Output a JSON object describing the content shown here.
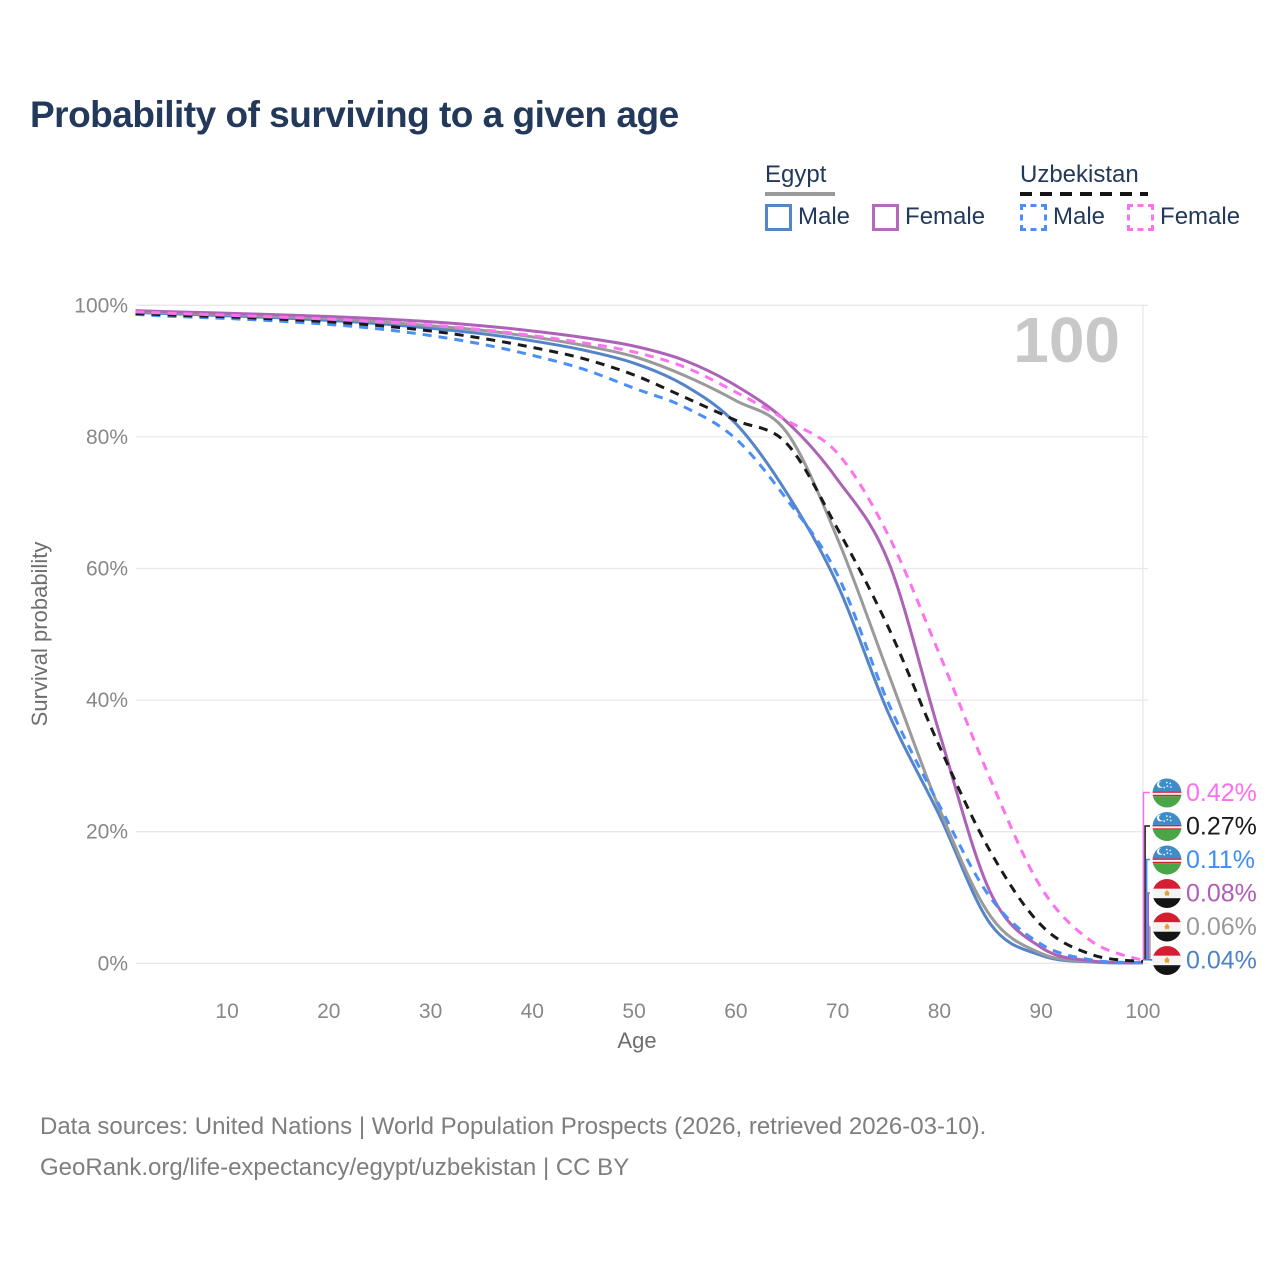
{
  "title": "Probability of surviving to a given age",
  "watermark": "100",
  "legend": {
    "groups": [
      {
        "title": "Egypt",
        "line_style": "solid",
        "underline_color": "#9a9a9a",
        "items": [
          {
            "label": "Male",
            "color": "#5585c9",
            "style": "solid"
          },
          {
            "label": "Female",
            "color": "#b36ab9",
            "style": "solid"
          }
        ]
      },
      {
        "title": "Uzbekistan",
        "line_style": "dashed",
        "underline_color": "#141414",
        "items": [
          {
            "label": "Male",
            "color": "#4b8ff5",
            "style": "dashed"
          },
          {
            "label": "Female",
            "color": "#fb73ee",
            "style": "dashed"
          }
        ]
      }
    ]
  },
  "chart_data": {
    "type": "line",
    "title": "Probability of surviving to a given age",
    "xlabel": "Age",
    "ylabel": "Survival probability",
    "xlim": [
      1,
      100
    ],
    "ylim": [
      0,
      100
    ],
    "grid": "horizontal",
    "legend_position": "top-right",
    "x_ticks": [
      {
        "v": 10,
        "label": "10"
      },
      {
        "v": 20,
        "label": "20"
      },
      {
        "v": 30,
        "label": "30"
      },
      {
        "v": 40,
        "label": "40"
      },
      {
        "v": 50,
        "label": "50"
      },
      {
        "v": 60,
        "label": "60"
      },
      {
        "v": 70,
        "label": "70"
      },
      {
        "v": 80,
        "label": "80"
      },
      {
        "v": 90,
        "label": "90"
      },
      {
        "v": 100,
        "label": "100"
      }
    ],
    "y_ticks": [
      {
        "v": 0,
        "label": "0%"
      },
      {
        "v": 20,
        "label": "20%"
      },
      {
        "v": 40,
        "label": "40%"
      },
      {
        "v": 60,
        "label": "60%"
      },
      {
        "v": 80,
        "label": "80%"
      },
      {
        "v": 100,
        "label": "100%"
      }
    ],
    "x": [
      1,
      5,
      10,
      15,
      20,
      25,
      30,
      35,
      40,
      45,
      50,
      55,
      60,
      65,
      70,
      75,
      80,
      85,
      90,
      95,
      100
    ],
    "series": [
      {
        "name": "Egypt Male",
        "country": "eg",
        "sex": "Male",
        "color": "#5585c9",
        "dash": false,
        "values": [
          98.9,
          98.7,
          98.4,
          98.1,
          97.7,
          97.2,
          96.5,
          95.7,
          94.6,
          93.2,
          91.2,
          87.8,
          82.0,
          71.5,
          57.5,
          38.0,
          22.5,
          6.0,
          1.2,
          0.2,
          0.04
        ]
      },
      {
        "name": "Egypt Both sexes",
        "country": "eg",
        "sex": "Both",
        "color": "#9a9a9a",
        "dash": false,
        "values": [
          99.05,
          98.85,
          98.6,
          98.3,
          98.0,
          97.5,
          96.9,
          96.2,
          95.2,
          93.9,
          92.2,
          89.3,
          85.5,
          80.7,
          64.5,
          44.0,
          23.5,
          7.2,
          1.5,
          0.25,
          0.06
        ]
      },
      {
        "name": "Egypt Female",
        "country": "eg",
        "sex": "Female",
        "color": "#ad62b8",
        "dash": false,
        "values": [
          99.2,
          99.0,
          98.8,
          98.55,
          98.3,
          97.95,
          97.5,
          96.9,
          96.1,
          95.1,
          93.8,
          91.6,
          87.8,
          82.3,
          73.5,
          61.0,
          35.0,
          10.8,
          2.4,
          0.35,
          0.08
        ]
      },
      {
        "name": "Uzbekistan Male",
        "country": "uz",
        "sex": "Male",
        "color": "#4b8ff5",
        "dash": true,
        "values": [
          98.6,
          98.3,
          98.0,
          97.6,
          97.1,
          96.4,
          95.4,
          94.1,
          92.4,
          90.3,
          87.4,
          84.5,
          79.7,
          70.5,
          59.0,
          39.5,
          24.0,
          10.0,
          2.9,
          0.5,
          0.11
        ]
      },
      {
        "name": "Uzbekistan Both sexes",
        "country": "uz",
        "sex": "Both",
        "color": "#1a1a1a",
        "dash": true,
        "values": [
          98.75,
          98.5,
          98.25,
          97.9,
          97.5,
          96.9,
          96.1,
          95.0,
          93.6,
          91.9,
          89.4,
          86.0,
          82.5,
          79.0,
          66.0,
          51.0,
          33.0,
          17.0,
          5.8,
          1.3,
          0.27
        ]
      },
      {
        "name": "Uzbekistan Female",
        "country": "uz",
        "sex": "Female",
        "color": "#fb73ee",
        "dash": true,
        "values": [
          99.0,
          98.75,
          98.5,
          98.2,
          97.9,
          97.5,
          97.0,
          96.3,
          95.4,
          94.3,
          92.9,
          90.6,
          86.8,
          82.5,
          77.5,
          65.0,
          47.0,
          28.0,
          11.5,
          3.3,
          0.42
        ]
      }
    ],
    "end_labels": [
      {
        "series": "Uzbekistan Female",
        "country": "uz",
        "value": "0.42%",
        "color": "#fb6ef0"
      },
      {
        "series": "Uzbekistan Both sexes",
        "country": "uz",
        "value": "0.27%",
        "color": "#1a1a1a"
      },
      {
        "series": "Uzbekistan Male",
        "country": "uz",
        "value": "0.11%",
        "color": "#3e8ef7"
      },
      {
        "series": "Egypt Female",
        "country": "eg",
        "value": "0.08%",
        "color": "#b05cb8"
      },
      {
        "series": "Egypt Both sexes",
        "country": "eg",
        "value": "0.06%",
        "color": "#999999"
      },
      {
        "series": "Egypt Male",
        "country": "eg",
        "value": "0.04%",
        "color": "#4d82c4"
      }
    ]
  },
  "footer": {
    "line1": "Data sources: United Nations | World Population Prospects (2026, retrieved 2026-03-10).",
    "line2": "GeoRank.org/life-expectancy/egypt/uzbekistan | CC BY"
  }
}
